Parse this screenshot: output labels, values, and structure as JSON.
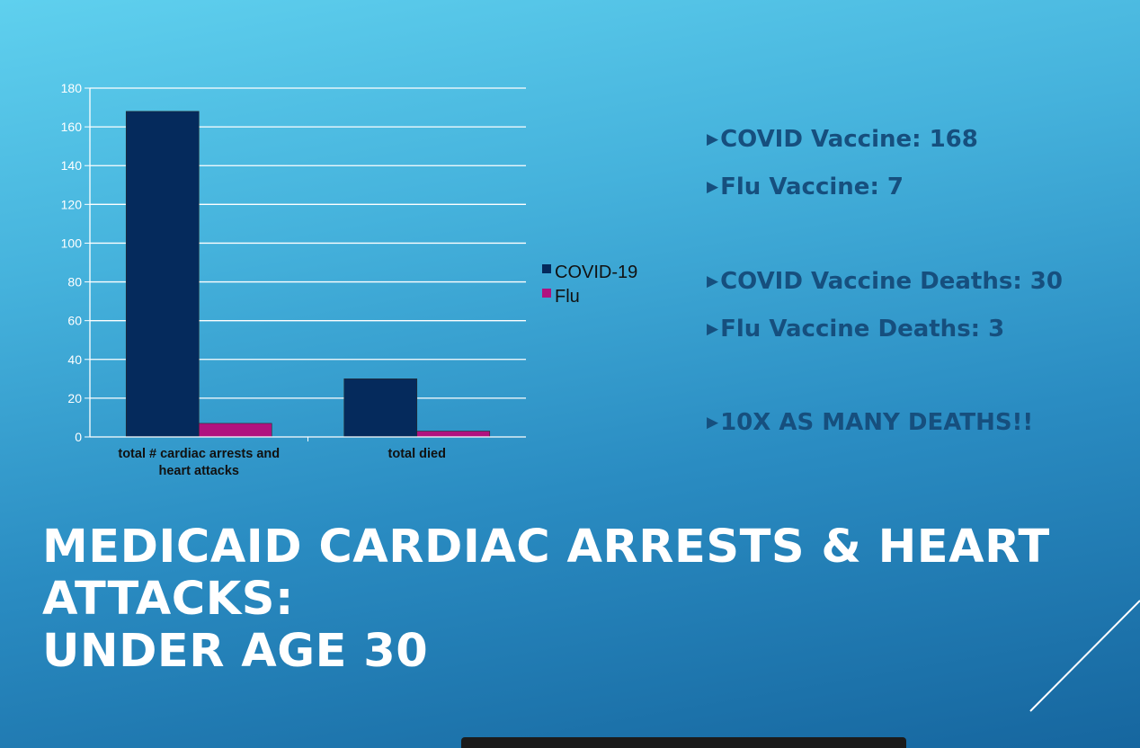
{
  "chart_data": {
    "type": "bar",
    "categories": [
      "total # cardiac arrests and heart attacks",
      "total died"
    ],
    "series": [
      {
        "name": "COVID-19",
        "values": [
          168,
          30
        ],
        "color": "#052a5c"
      },
      {
        "name": "Flu",
        "values": [
          7,
          3
        ],
        "color": "#b0127f"
      }
    ],
    "y_ticks": [
      "0",
      "20",
      "40",
      "60",
      "80",
      "100",
      "120",
      "140",
      "160",
      "180"
    ],
    "ylim": [
      0,
      180
    ],
    "grid": true,
    "legend_position": "right"
  },
  "bullets": [
    {
      "arrow": "▶",
      "text": "COVID Vaccine: 168"
    },
    {
      "arrow": "▶",
      "text": "Flu Vaccine: 7"
    },
    {
      "arrow": "▶",
      "text": "COVID Vaccine Deaths:  30"
    },
    {
      "arrow": "▶",
      "text": "Flu Vaccine Deaths: 3"
    },
    {
      "arrow": "▶",
      "text": "10X AS MANY DEATHS!!"
    }
  ],
  "title": {
    "line1": "MEDICAID CARDIAC ARRESTS & HEART",
    "line2": "ATTACKS:",
    "line3": "UNDER AGE 30"
  }
}
